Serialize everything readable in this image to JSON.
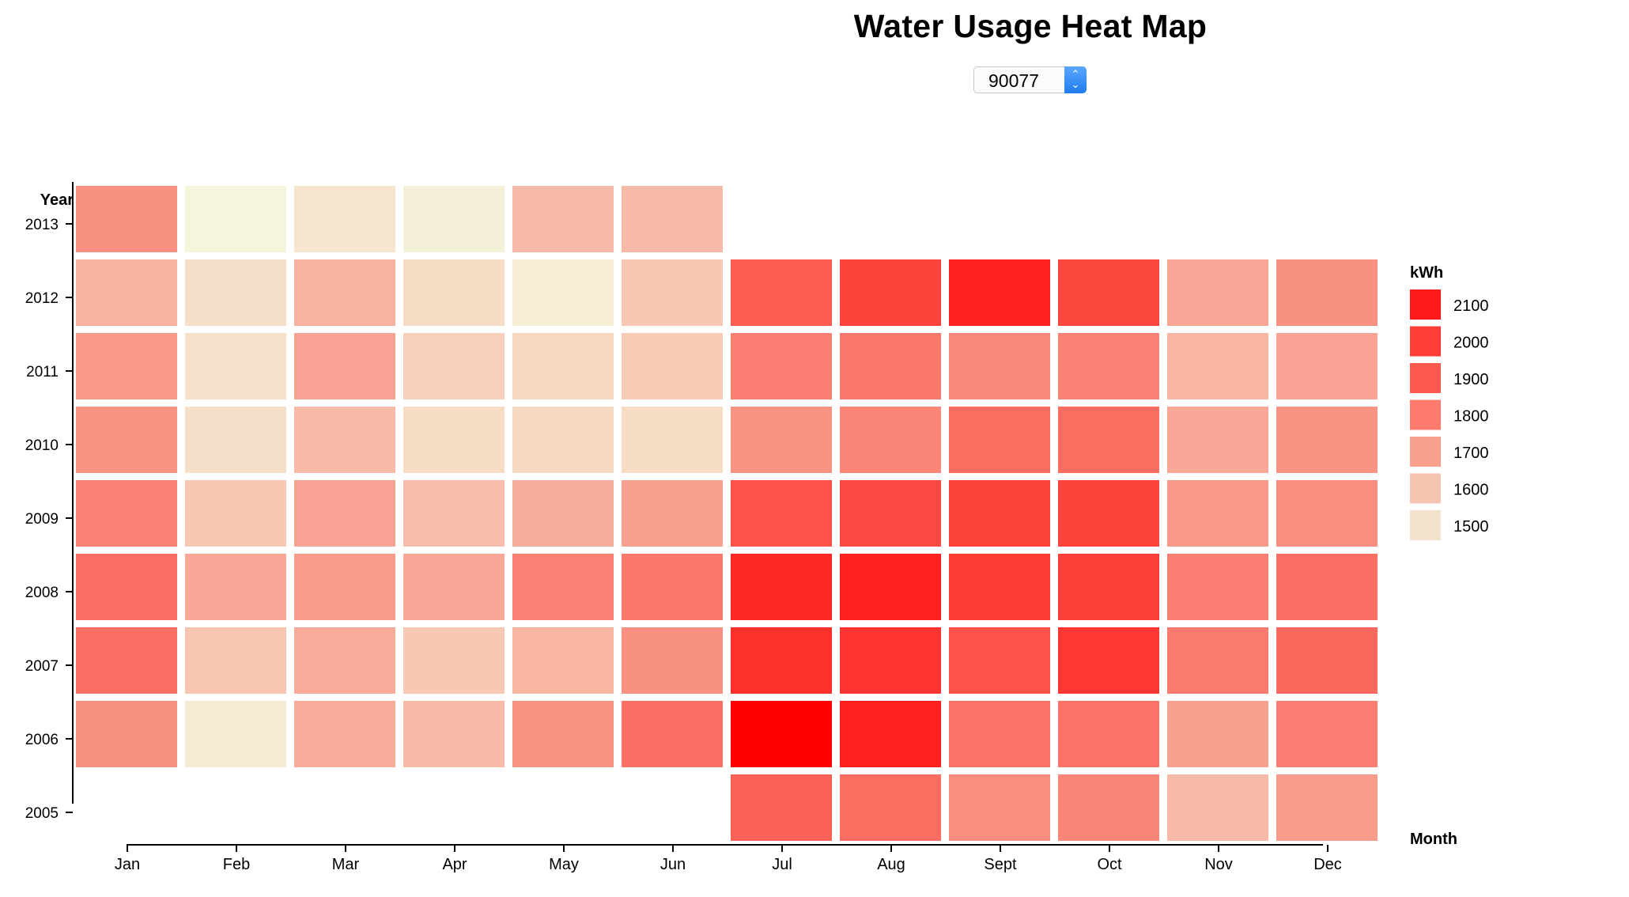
{
  "header": {
    "title": "Water Usage Heat Map",
    "zip_selector_value": "90077"
  },
  "chart_data": {
    "type": "heatmap",
    "title": "Water Usage Heat Map",
    "xlabel": "Month",
    "ylabel": "Year",
    "x_categories": [
      "Jan",
      "Feb",
      "Mar",
      "Apr",
      "May",
      "Jun",
      "Jul",
      "Aug",
      "Sept",
      "Oct",
      "Nov",
      "Dec"
    ],
    "y_categories": [
      "2013",
      "2012",
      "2011",
      "2010",
      "2009",
      "2008",
      "2007",
      "2006",
      "2005"
    ],
    "values": [
      [
        1710,
        1440,
        1480,
        1450,
        1600,
        1600,
        null,
        null,
        null,
        null,
        null,
        null
      ],
      [
        1620,
        1500,
        1620,
        1510,
        1460,
        1560,
        1850,
        1920,
        2010,
        1910,
        1650,
        1710
      ],
      [
        1690,
        1490,
        1660,
        1540,
        1520,
        1550,
        1760,
        1780,
        1730,
        1750,
        1610,
        1660
      ],
      [
        1700,
        1500,
        1600,
        1510,
        1520,
        1510,
        1700,
        1740,
        1810,
        1810,
        1650,
        1700
      ],
      [
        1750,
        1560,
        1660,
        1590,
        1630,
        1670,
        1880,
        1900,
        1920,
        1920,
        1690,
        1720
      ],
      [
        1800,
        1650,
        1680,
        1650,
        1750,
        1780,
        1990,
        2010,
        1940,
        1930,
        1760,
        1800
      ],
      [
        1800,
        1570,
        1640,
        1560,
        1610,
        1710,
        1970,
        1960,
        1880,
        1950,
        1770,
        1820
      ],
      [
        1710,
        1470,
        1640,
        1600,
        1700,
        1800,
        2100,
        2010,
        1790,
        1790,
        1670,
        1760
      ],
      [
        null,
        null,
        null,
        null,
        null,
        null,
        1840,
        1810,
        1720,
        1740,
        1600,
        1680
      ]
    ],
    "legend": {
      "title": "kWh",
      "placement": "right",
      "steps": [
        {
          "label": "2100",
          "color": "#ff1a1a"
        },
        {
          "label": "2000",
          "color": "#ff3d36"
        },
        {
          "label": "1900",
          "color": "#ff5a50"
        },
        {
          "label": "1800",
          "color": "#fc7b6d"
        },
        {
          "label": "1700",
          "color": "#f9a08e"
        },
        {
          "label": "1600",
          "color": "#f6c5b0"
        },
        {
          "label": "1500",
          "color": "#f4e3cc"
        }
      ]
    },
    "color_scale": {
      "min": 1440,
      "max": 2100,
      "low_color": "#f5f5dc",
      "high_color": "#ff0000"
    },
    "grid": false
  }
}
